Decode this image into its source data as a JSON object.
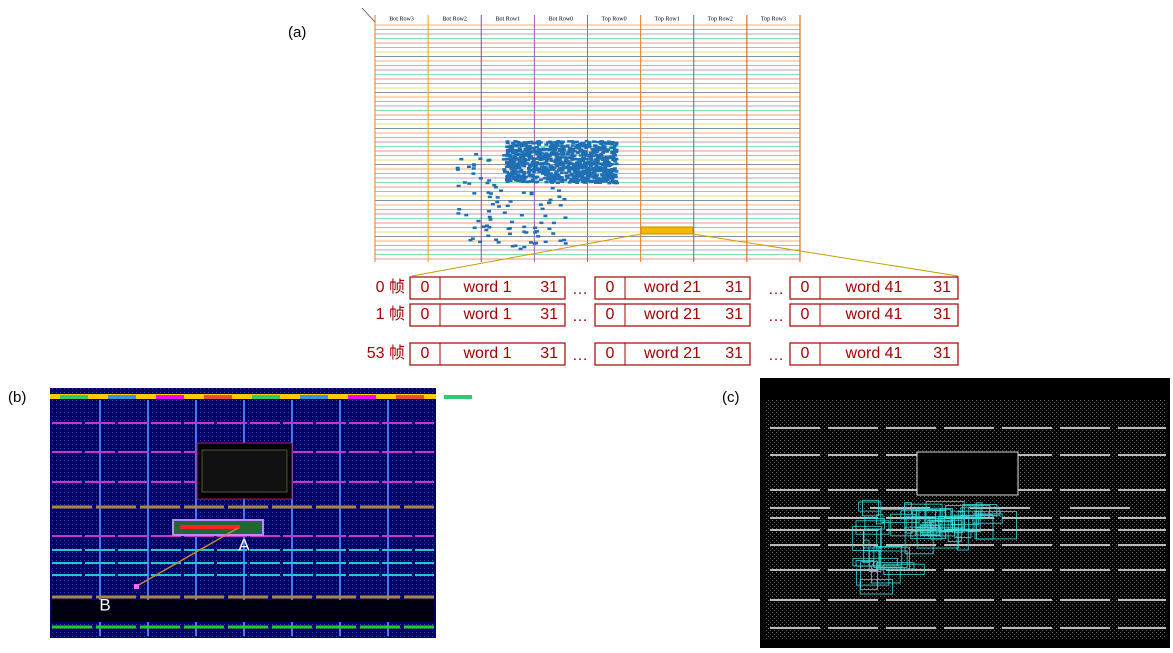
{
  "panel_a": {
    "label": "(a)",
    "columns": [
      "Bot Row3",
      "Bot Row2",
      "Bot Row1",
      "Bot Row0",
      "Top Row0",
      "Top Row1",
      "Top Row2",
      "Top Row3"
    ],
    "ellipsis": "…",
    "frames": [
      {
        "label": "0 帧",
        "words": [
          {
            "start": "0",
            "name": "word 1",
            "end": "31"
          },
          {
            "start": "0",
            "name": "word 21",
            "end": "31"
          },
          {
            "start": "0",
            "name": "word 41",
            "end": "31"
          }
        ]
      },
      {
        "label": "1 帧",
        "words": [
          {
            "start": "0",
            "name": "word 1",
            "end": "31"
          },
          {
            "start": "0",
            "name": "word 21",
            "end": "31"
          },
          {
            "start": "0",
            "name": "word 41",
            "end": "31"
          }
        ]
      },
      {
        "label": "53 帧",
        "words": [
          {
            "start": "0",
            "name": "word 1",
            "end": "31"
          },
          {
            "start": "0",
            "name": "word 21",
            "end": "31"
          },
          {
            "start": "0",
            "name": "word 41",
            "end": "31"
          }
        ]
      }
    ]
  },
  "panel_b": {
    "label": "(b)",
    "markers": [
      "A",
      "B"
    ]
  },
  "panel_c": {
    "label": "(c)"
  }
}
